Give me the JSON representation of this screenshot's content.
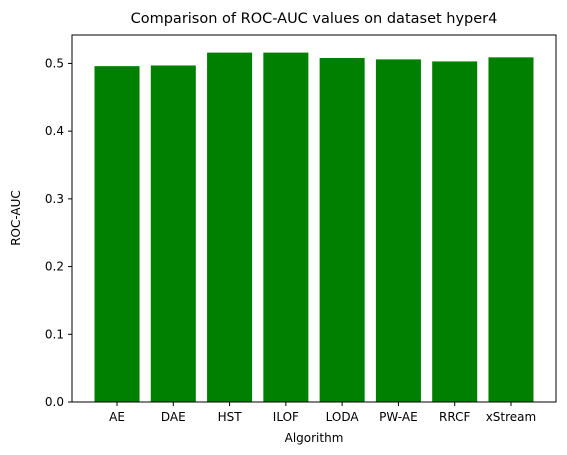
{
  "chart_data": {
    "type": "bar",
    "title": "Comparison of ROC-AUC values on dataset hyper4",
    "xlabel": "Algorithm",
    "ylabel": "ROC-AUC",
    "categories": [
      "AE",
      "DAE",
      "HST",
      "ILOF",
      "LODA",
      "PW-AE",
      "RRCF",
      "xStream"
    ],
    "values": [
      0.496,
      0.497,
      0.516,
      0.516,
      0.508,
      0.506,
      0.503,
      0.509
    ],
    "ylim": [
      0,
      0.542
    ],
    "yticks": [
      0.0,
      0.1,
      0.2,
      0.3,
      0.4,
      0.5
    ],
    "ytick_labels": [
      "0.0",
      "0.1",
      "0.2",
      "0.3",
      "0.4",
      "0.5"
    ],
    "bar_color": "#008000",
    "grid": false,
    "legend": "none"
  }
}
